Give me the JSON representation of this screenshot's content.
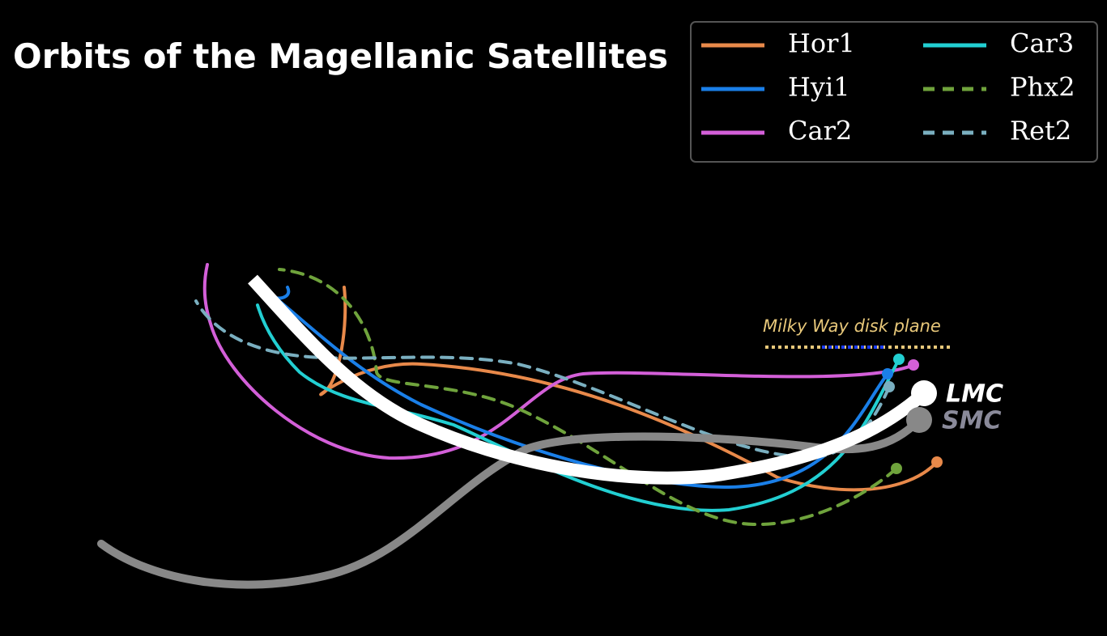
{
  "title": "Orbits of the Magellanic Satellites",
  "legend": [
    {
      "name": "Hor1",
      "color": "#e8894a",
      "style": "solid"
    },
    {
      "name": "Hyi1",
      "color": "#1a7fe8",
      "style": "solid"
    },
    {
      "name": "Car2",
      "color": "#d35fd8",
      "style": "solid"
    },
    {
      "name": "Car3",
      "color": "#22cfd2",
      "style": "solid"
    },
    {
      "name": "Phx2",
      "color": "#6fa33c",
      "style": "dashed"
    },
    {
      "name": "Ret2",
      "color": "#7aafc0",
      "style": "dashed"
    }
  ],
  "annotation": "Milky Way disk plane",
  "labels": [
    "LMC",
    "SMC"
  ]
}
